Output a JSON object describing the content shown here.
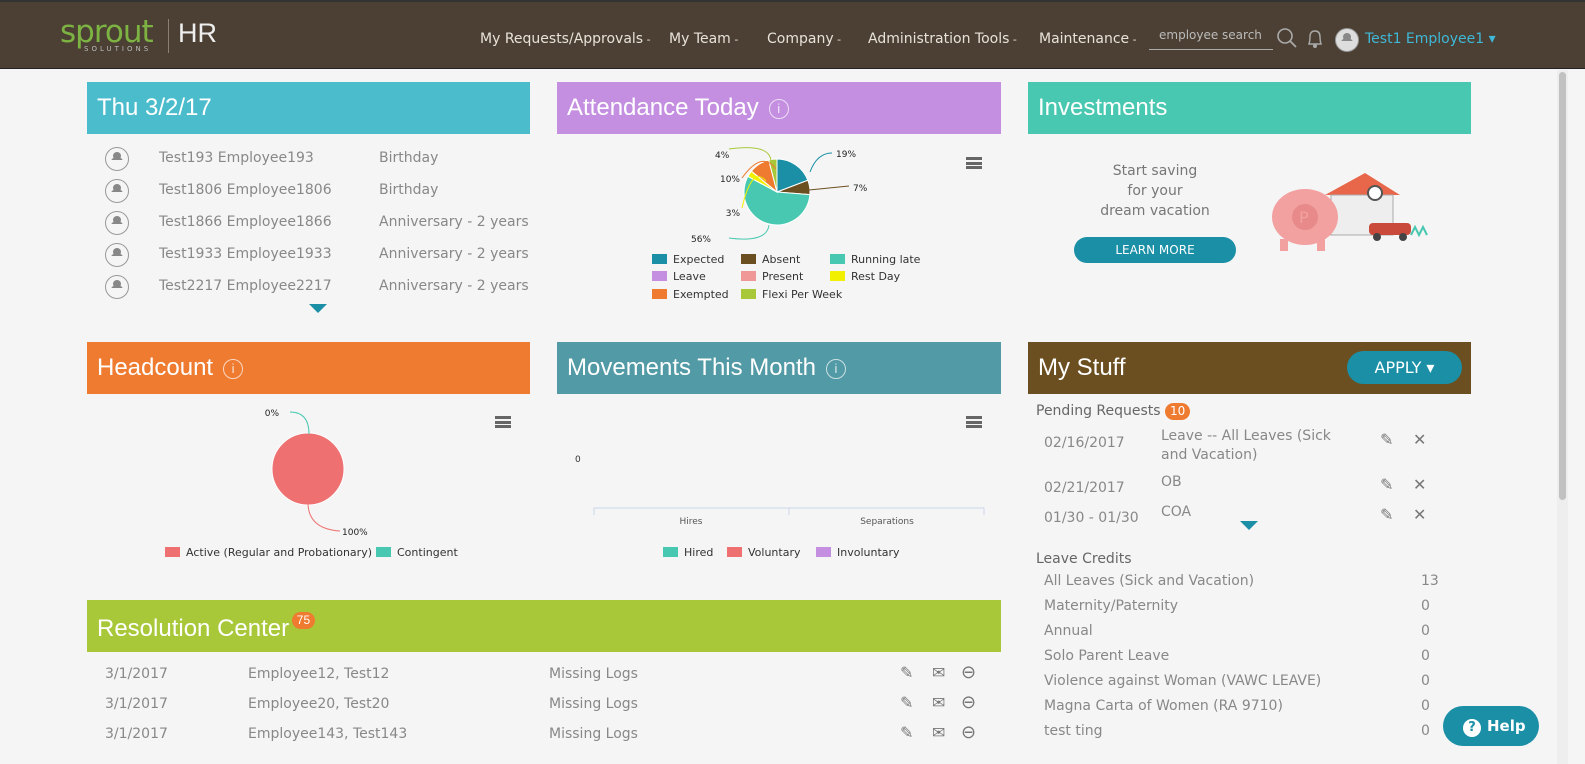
{
  "header": {
    "logo_text": "sprout",
    "logo_sub": "SOLUTIONS",
    "app": "HR",
    "nav": [
      "My Requests/Approvals",
      "My Team",
      "Company",
      "Administration Tools",
      "Maintenance"
    ],
    "search_placeholder": "employee search",
    "user": "Test1 Employee1"
  },
  "today": {
    "title": "Thu 3/2/17",
    "rows": [
      {
        "name": "Test193 Employee193",
        "event": "Birthday"
      },
      {
        "name": "Test1806 Employee1806",
        "event": "Birthday"
      },
      {
        "name": "Test1866 Employee1866",
        "event": "Anniversary - 2 years"
      },
      {
        "name": "Test1933 Employee1933",
        "event": "Anniversary - 2 years"
      },
      {
        "name": "Test2217 Employee2217",
        "event": "Anniversary - 2 years"
      }
    ]
  },
  "attendance": {
    "title": "Attendance Today",
    "info": "i"
  },
  "investments": {
    "title": "Investments",
    "text1": "Start saving",
    "text2": "for your",
    "text3": "dream vacation",
    "button": "LEARN MORE"
  },
  "headcount": {
    "title": "Headcount",
    "info": "i"
  },
  "movements": {
    "title": "Movements This Month",
    "info": "i"
  },
  "mystuff": {
    "title": "My Stuff",
    "apply": "APPLY",
    "pending_label": "Pending Requests",
    "pending_count": "10",
    "pending": [
      {
        "date": "02/16/2017",
        "type": "Leave -- All Leaves (Sick and Vacation)"
      },
      {
        "date": "02/21/2017",
        "type": "OB"
      },
      {
        "date": "01/30 - 01/30",
        "type": "COA"
      }
    ],
    "credits_label": "Leave Credits",
    "credits": [
      {
        "name": "All Leaves (Sick and Vacation)",
        "value": "13"
      },
      {
        "name": "Maternity/Paternity",
        "value": "0"
      },
      {
        "name": "Annual",
        "value": "0"
      },
      {
        "name": "Solo Parent Leave",
        "value": "0"
      },
      {
        "name": "Violence against Woman (VAWC LEAVE)",
        "value": "0"
      },
      {
        "name": "Magna Carta of Women (RA 9710)",
        "value": "0"
      },
      {
        "name": "test ting",
        "value": "0"
      }
    ]
  },
  "resolution": {
    "title": "Resolution Center",
    "count": "75",
    "rows": [
      {
        "date": "3/1/2017",
        "name": "Employee12, Test12",
        "issue": "Missing Logs"
      },
      {
        "date": "3/1/2017",
        "name": "Employee20, Test20",
        "issue": "Missing Logs"
      },
      {
        "date": "3/1/2017",
        "name": "Employee143, Test143",
        "issue": "Missing Logs"
      }
    ]
  },
  "help": {
    "label": "Help"
  },
  "colors": {
    "header": "#4b4033",
    "today": "#4bbccc",
    "attendance": "#c48fe0",
    "investments": "#48c8b0",
    "headcount": "#ee7b30",
    "movements": "#529aa5",
    "mystuff": "#6b4f20",
    "resolution": "#a8c83a",
    "accent": "#1a8fa6"
  },
  "chart_data": [
    {
      "type": "pie",
      "series": [
        {
          "name": "Expected",
          "value": 19,
          "color": "#1a8fa6"
        },
        {
          "name": "Absent",
          "value": 7,
          "color": "#6b4f20"
        },
        {
          "name": "Running late",
          "value": 56,
          "color": "#48c8b0"
        },
        {
          "name": "Leave",
          "value": 0,
          "color": "#c48fe0"
        },
        {
          "name": "Present",
          "value": 0,
          "color": "#f09898"
        },
        {
          "name": "Rest Day",
          "value": 3,
          "color": "#f0f000"
        },
        {
          "name": "Exempted",
          "value": 10,
          "color": "#ee7b30"
        },
        {
          "name": "Flexi Per Week",
          "value": 4,
          "color": "#a8c83a"
        }
      ],
      "legend": "bottom"
    },
    {
      "type": "pie",
      "series": [
        {
          "name": "Active (Regular and Probationary)",
          "value": 100,
          "color": "#ee7070"
        },
        {
          "name": "Contingent",
          "value": 0,
          "color": "#48c8b0"
        }
      ],
      "legend": "bottom"
    },
    {
      "type": "bar",
      "categories": [
        "Hires",
        "Separations"
      ],
      "series": [
        {
          "name": "Hired",
          "values": [
            0,
            0
          ],
          "color": "#48c8b0"
        },
        {
          "name": "Voluntary",
          "values": [
            0,
            0
          ],
          "color": "#ee7070"
        },
        {
          "name": "Involuntary",
          "values": [
            0,
            0
          ],
          "color": "#c48fe0"
        }
      ],
      "yticks": [
        "0"
      ],
      "legend": "bottom"
    }
  ]
}
